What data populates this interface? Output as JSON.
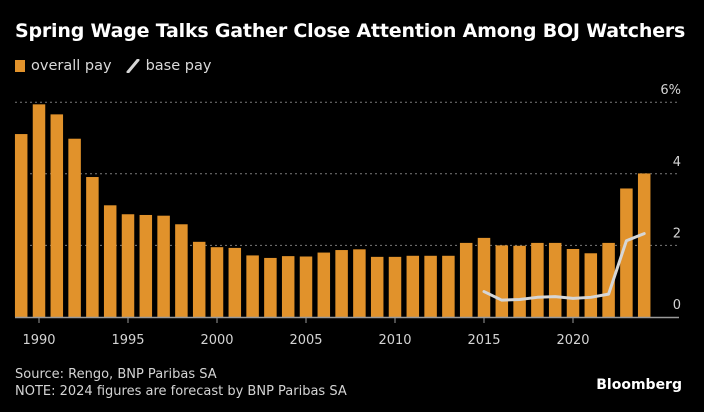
{
  "header": {
    "title": "Spring Wage Talks Gather Close Attention Among BOJ Watchers"
  },
  "legend": {
    "items": [
      {
        "label": "overall pay",
        "icon": "square-swatch-icon",
        "color": "#e1922b"
      },
      {
        "label": "base pay",
        "icon": "line-swatch-icon",
        "color": "#d6d6d6"
      }
    ]
  },
  "footer": {
    "source": "Source: Rengo, BNP Paribas SA",
    "note": "NOTE: 2024 figures are forecast by BNP Paribas SA",
    "brand": "Bloomberg"
  },
  "chart_data": {
    "type": "bar",
    "title": "Spring Wage Talks Gather Close Attention Among BOJ Watchers",
    "xlabel": "",
    "ylabel": "",
    "ylim": [
      0,
      6
    ],
    "y_ticks": [
      0,
      2,
      4,
      6
    ],
    "y_tick_labels": [
      "0",
      "2",
      "4",
      "6%"
    ],
    "x_tick_labels": [
      "1990",
      "1995",
      "2000",
      "2005",
      "2010",
      "2015",
      "2020"
    ],
    "grid": true,
    "legend_position": "top-left",
    "categories": [
      1989,
      1990,
      1991,
      1992,
      1993,
      1994,
      1995,
      1996,
      1997,
      1998,
      1999,
      2000,
      2001,
      2002,
      2003,
      2004,
      2005,
      2006,
      2007,
      2008,
      2009,
      2010,
      2011,
      2012,
      2013,
      2014,
      2015,
      2016,
      2017,
      2018,
      2019,
      2020,
      2021,
      2022,
      2023,
      2024
    ],
    "series": [
      {
        "name": "overall pay",
        "type": "bar",
        "color": "#e1922b",
        "values": [
          5.11,
          5.94,
          5.66,
          4.98,
          3.91,
          3.12,
          2.87,
          2.85,
          2.83,
          2.59,
          2.1,
          1.95,
          1.93,
          1.72,
          1.65,
          1.7,
          1.69,
          1.8,
          1.87,
          1.89,
          1.68,
          1.68,
          1.71,
          1.71,
          1.71,
          2.07,
          2.21,
          2.0,
          1.99,
          2.07,
          2.07,
          1.9,
          1.78,
          2.07,
          3.59,
          4.01
        ]
      },
      {
        "name": "base pay",
        "type": "line",
        "color": "#d6d6d6",
        "x": [
          2015,
          2016,
          2017,
          2018,
          2019,
          2020,
          2021,
          2022,
          2023,
          2024
        ],
        "values": [
          0.71,
          0.47,
          0.49,
          0.55,
          0.57,
          0.52,
          0.55,
          0.64,
          2.13,
          2.33
        ]
      }
    ]
  }
}
